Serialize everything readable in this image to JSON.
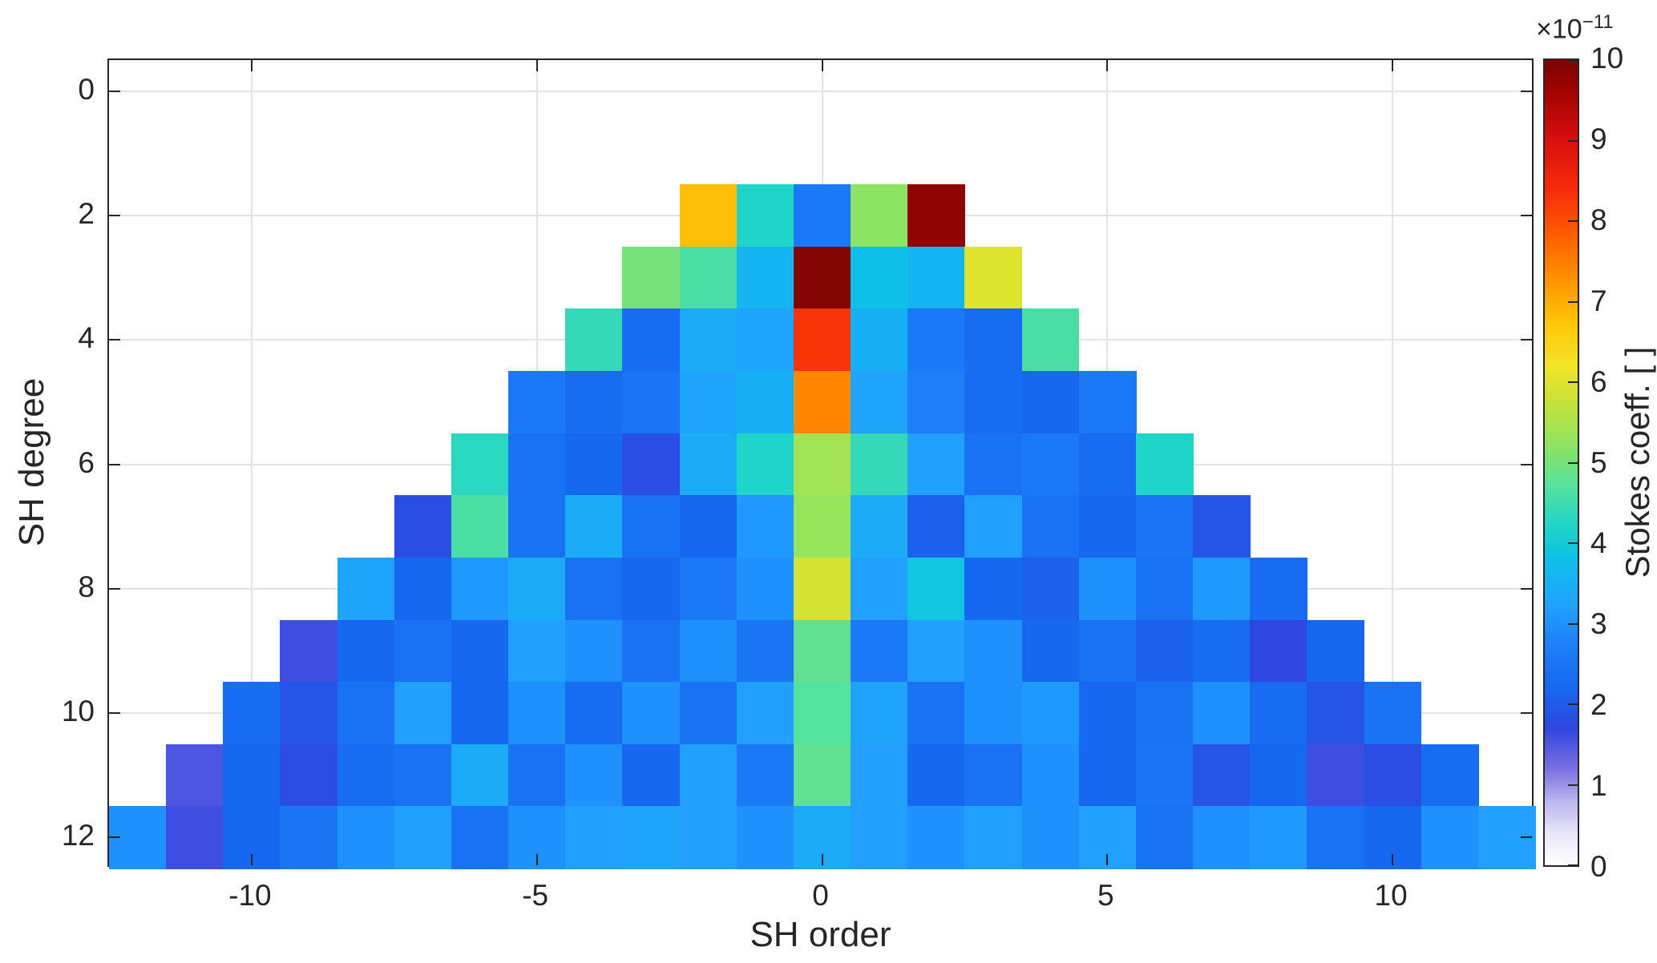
{
  "chart_data": {
    "type": "heatmap",
    "title": "",
    "xlabel": "SH order",
    "ylabel": "SH degree",
    "x_ticks": [
      -10,
      -5,
      0,
      5,
      10
    ],
    "y_ticks": [
      0,
      2,
      4,
      6,
      8,
      10,
      12
    ],
    "x_range": [
      -12.5,
      12.5
    ],
    "y_range": [
      -0.5,
      12.5
    ],
    "y_axis_reversed": true,
    "grid": true,
    "value_scale": "1e-11",
    "colorbar": {
      "label": "Stokes coeff. [ ]",
      "exponent_base": "×10",
      "exponent_power": "−11",
      "min": 0,
      "max": 10,
      "ticks": [
        0,
        1,
        2,
        3,
        4,
        5,
        6,
        7,
        8,
        9,
        10
      ]
    },
    "colormap_stops": [
      [
        0.0,
        "#ffffff"
      ],
      [
        0.04,
        "#e8e6f8"
      ],
      [
        0.08,
        "#b9b4ee"
      ],
      [
        0.12,
        "#7a6fe0"
      ],
      [
        0.17,
        "#2f46e0"
      ],
      [
        0.22,
        "#1668f0"
      ],
      [
        0.28,
        "#1e82fa"
      ],
      [
        0.32,
        "#21a0ff"
      ],
      [
        0.38,
        "#0ec0e8"
      ],
      [
        0.42,
        "#1fd4c8"
      ],
      [
        0.47,
        "#55e19e"
      ],
      [
        0.52,
        "#8ce364"
      ],
      [
        0.57,
        "#c0e23c"
      ],
      [
        0.62,
        "#f2e426"
      ],
      [
        0.67,
        "#ffc80a"
      ],
      [
        0.72,
        "#ff9b00"
      ],
      [
        0.78,
        "#ff5f00"
      ],
      [
        0.84,
        "#f72a0a"
      ],
      [
        0.9,
        "#d90f0f"
      ],
      [
        0.95,
        "#ab0404"
      ],
      [
        1.0,
        "#7a0403"
      ]
    ],
    "rows": [
      {
        "degree": 2,
        "order_start": -2,
        "values": [
          6.8,
          4.2,
          2.6,
          5.2,
          9.8
        ]
      },
      {
        "degree": 3,
        "order_start": -3,
        "values": [
          5.0,
          4.6,
          3.6,
          9.9,
          3.8,
          3.6,
          6.0
        ]
      },
      {
        "degree": 4,
        "order_start": -4,
        "values": [
          4.4,
          2.3,
          3.4,
          3.3,
          8.3,
          3.5,
          2.6,
          2.3,
          4.6
        ]
      },
      {
        "degree": 5,
        "order_start": -5,
        "values": [
          2.6,
          2.3,
          2.5,
          3.3,
          3.5,
          7.4,
          3.3,
          2.7,
          2.3,
          2.2,
          2.6
        ]
      },
      {
        "degree": 6,
        "order_start": -6,
        "values": [
          4.3,
          2.4,
          2.2,
          1.8,
          3.4,
          4.2,
          5.4,
          4.4,
          3.2,
          2.4,
          2.6,
          2.3,
          4.2
        ]
      },
      {
        "degree": 7,
        "order_start": -7,
        "values": [
          1.8,
          4.6,
          2.4,
          3.4,
          2.4,
          2.2,
          3.1,
          5.3,
          3.4,
          2.1,
          3.2,
          2.4,
          2.2,
          2.5,
          1.9
        ]
      },
      {
        "degree": 8,
        "order_start": -8,
        "values": [
          3.3,
          2.2,
          3.1,
          3.4,
          2.4,
          2.2,
          2.6,
          3.0,
          5.9,
          3.2,
          3.9,
          2.2,
          2.1,
          3.0,
          2.4,
          3.1,
          2.3
        ]
      },
      {
        "degree": 9,
        "order_start": -9,
        "values": [
          1.6,
          2.2,
          2.4,
          2.2,
          3.2,
          3.0,
          2.4,
          3.0,
          2.5,
          4.8,
          2.6,
          3.2,
          3.0,
          2.2,
          2.4,
          2.1,
          2.3,
          1.7,
          2.2
        ]
      },
      {
        "degree": 10,
        "order_start": -10,
        "values": [
          2.3,
          1.9,
          2.4,
          3.2,
          2.2,
          3.0,
          2.3,
          3.0,
          2.4,
          3.2,
          4.7,
          3.3,
          2.4,
          3.0,
          3.1,
          2.2,
          2.4,
          3.0,
          2.3,
          1.9,
          2.4
        ]
      },
      {
        "degree": 11,
        "order_start": -11,
        "values": [
          1.5,
          2.2,
          1.8,
          2.3,
          2.4,
          3.4,
          2.4,
          3.0,
          2.2,
          3.2,
          2.6,
          4.8,
          3.2,
          2.2,
          2.4,
          3.0,
          2.2,
          2.5,
          1.9,
          2.2,
          1.6,
          1.8,
          2.3
        ]
      },
      {
        "degree": 12,
        "order_start": -12,
        "values": [
          3.0,
          1.6,
          2.2,
          2.5,
          3.0,
          3.2,
          2.4,
          3.0,
          3.2,
          3.3,
          3.2,
          3.0,
          3.4,
          3.2,
          3.0,
          3.2,
          3.0,
          3.2,
          2.4,
          3.0,
          3.1,
          2.4,
          2.2,
          3.0,
          3.2
        ]
      }
    ]
  }
}
